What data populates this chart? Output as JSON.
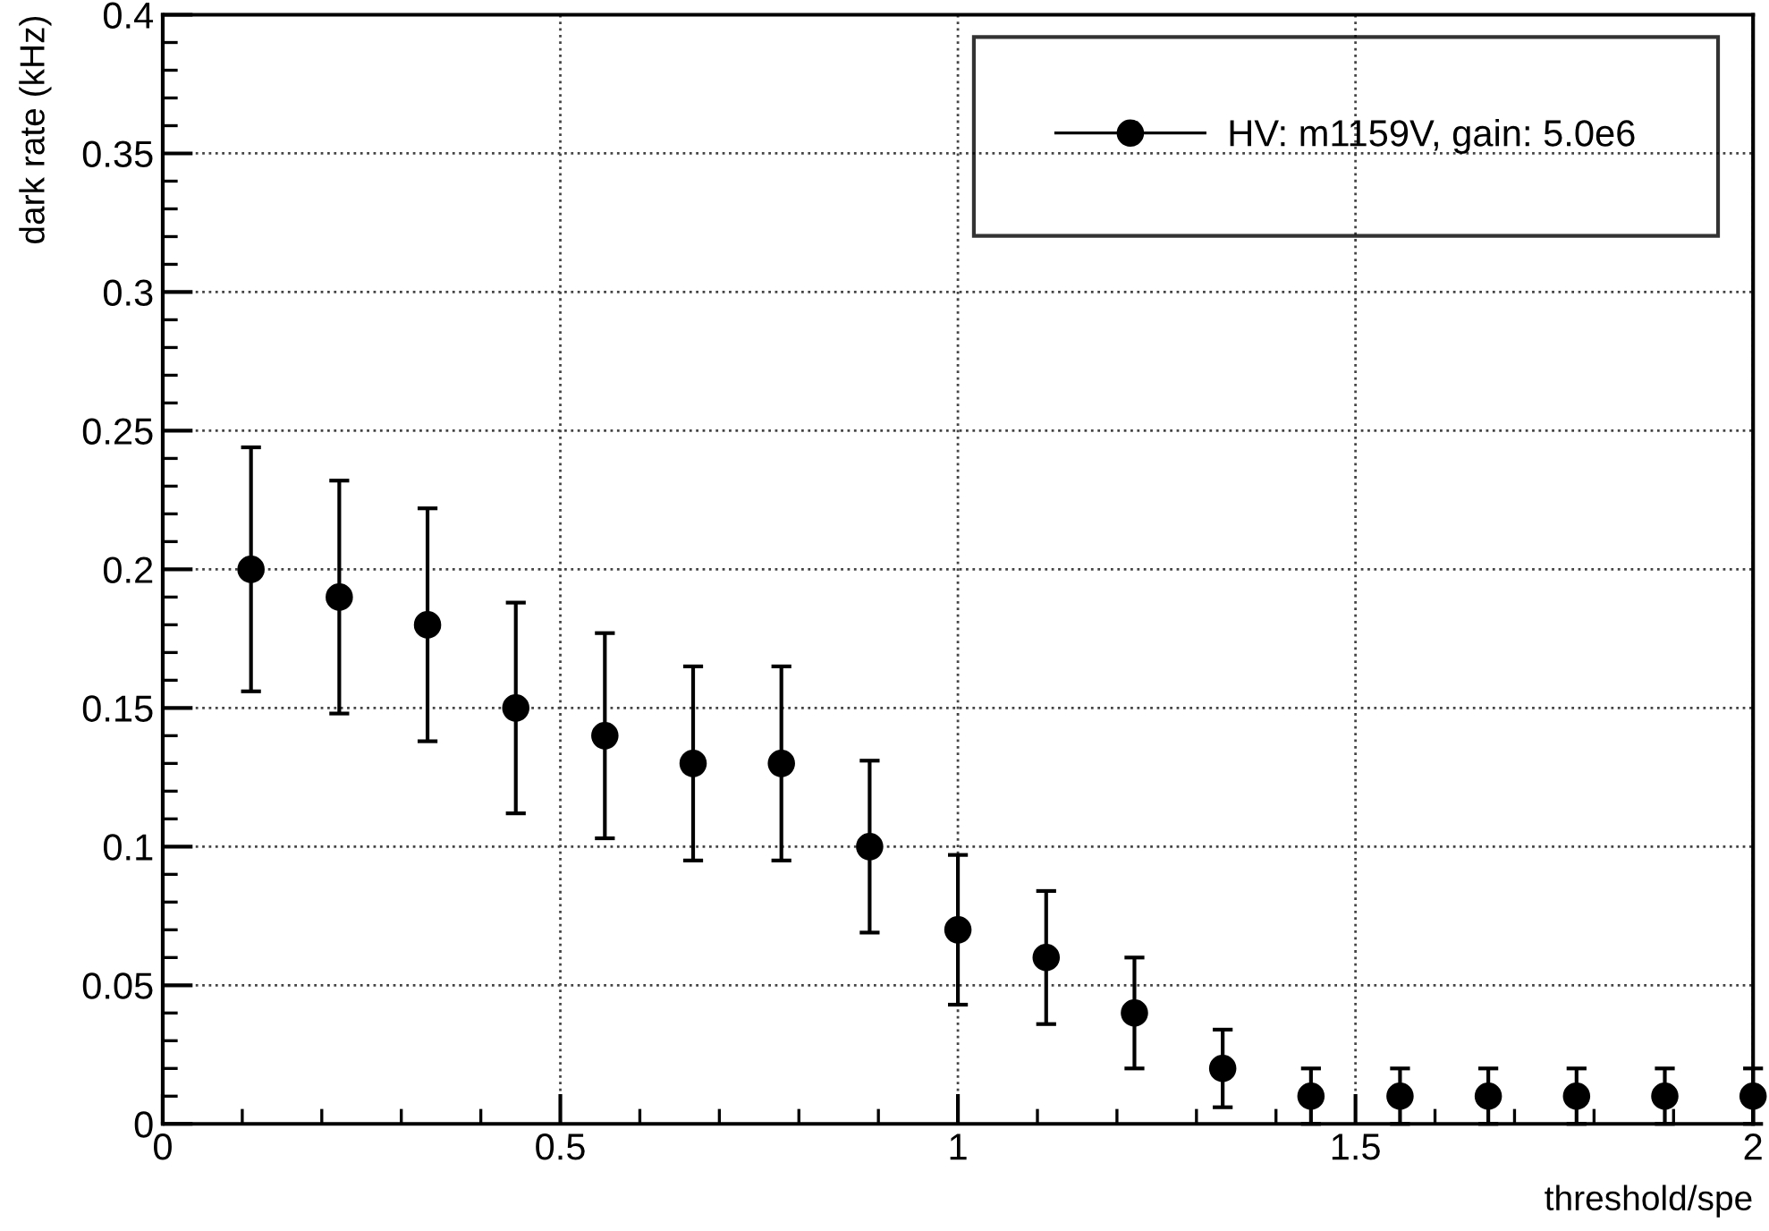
{
  "chart_data": {
    "type": "scatter",
    "xlabel": "threshold/spe",
    "ylabel": "dark rate (kHz)",
    "x": [
      0.111,
      0.222,
      0.333,
      0.444,
      0.556,
      0.667,
      0.778,
      0.889,
      1.0,
      1.111,
      1.222,
      1.333,
      1.444,
      1.556,
      1.667,
      1.778,
      1.889,
      2.0
    ],
    "series": [
      {
        "name": "HV: m1159V, gain: 5.0e6",
        "color": "#000000",
        "values": [
          0.2,
          0.19,
          0.18,
          0.15,
          0.14,
          0.13,
          0.13,
          0.1,
          0.07,
          0.06,
          0.04,
          0.02,
          0.01,
          0.01,
          0.01,
          0.01,
          0.01,
          0.01
        ],
        "errors": [
          0.044,
          0.042,
          0.042,
          0.038,
          0.037,
          0.035,
          0.035,
          0.031,
          0.027,
          0.024,
          0.02,
          0.014,
          0.01,
          0.01,
          0.01,
          0.01,
          0.01,
          0.01
        ]
      }
    ],
    "xlim": [
      0,
      2.0
    ],
    "ylim": [
      0,
      0.4
    ],
    "xticks": [
      0,
      0.5,
      1,
      1.5,
      2
    ],
    "yticks": [
      0,
      0.05,
      0.1,
      0.15,
      0.2,
      0.25,
      0.3,
      0.35,
      0.4
    ],
    "grid": true,
    "legend": "top right",
    "marker": "circle"
  }
}
